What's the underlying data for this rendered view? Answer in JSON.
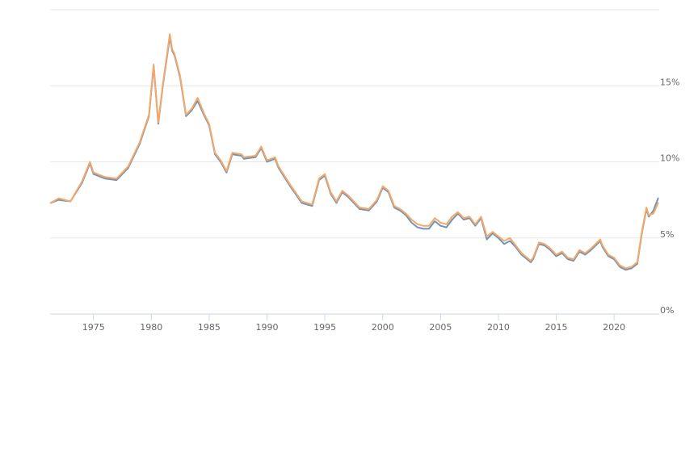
{
  "chart_data": {
    "type": "line",
    "title": "",
    "xlabel": "",
    "ylabel": "",
    "xlim": [
      1971.25,
      2023.9
    ],
    "ylim": [
      0,
      20
    ],
    "x_ticks": [
      1975,
      1980,
      1985,
      1990,
      1995,
      2000,
      2005,
      2010,
      2015,
      2020
    ],
    "y_ticks": [
      0,
      5,
      10,
      15
    ],
    "y_tick_suffix": "%",
    "grid": "horizontal",
    "legend": "none",
    "series": [
      {
        "color": "#6f94b8",
        "x": [
          1971.3,
          1972.0,
          1973.0,
          1974.0,
          1974.7,
          1975.0,
          1976.0,
          1977.0,
          1978.0,
          1979.0,
          1979.8,
          1980.2,
          1980.6,
          1981.0,
          1981.6,
          1981.8,
          1982.0,
          1982.5,
          1983.0,
          1983.5,
          1984.0,
          1984.6,
          1985.0,
          1985.5,
          1986.0,
          1986.5,
          1987.0,
          1987.8,
          1988.0,
          1989.0,
          1989.5,
          1990.0,
          1990.7,
          1991.0,
          1992.0,
          1993.0,
          1993.9,
          1994.5,
          1995.0,
          1995.5,
          1996.0,
          1996.5,
          1997.0,
          1998.0,
          1998.8,
          1999.5,
          2000.0,
          2000.5,
          2001.0,
          2001.5,
          2002.0,
          2002.5,
          2003.0,
          2003.5,
          2004.0,
          2004.5,
          2005.0,
          2005.5,
          2006.0,
          2006.5,
          2007.0,
          2007.5,
          2008.0,
          2008.5,
          2009.0,
          2009.5,
          2010.0,
          2010.5,
          2011.0,
          2011.5,
          2012.0,
          2012.8,
          2013.0,
          2013.5,
          2014.0,
          2014.5,
          2015.0,
          2015.5,
          2016.0,
          2016.5,
          2017.0,
          2017.5,
          2018.0,
          2018.8,
          2019.0,
          2019.5,
          2020.0,
          2020.5,
          2021.0,
          2021.5,
          2022.0,
          2022.4,
          2022.8,
          2023.0,
          2023.4,
          2023.8
        ],
        "y": [
          7.3,
          7.5,
          7.4,
          8.6,
          9.9,
          9.2,
          8.9,
          8.8,
          9.6,
          11.2,
          13.0,
          16.3,
          12.5,
          15.0,
          18.2,
          17.3,
          17.0,
          15.5,
          13.0,
          13.4,
          14.0,
          13.0,
          12.4,
          10.5,
          10.0,
          9.3,
          10.5,
          10.4,
          10.2,
          10.3,
          10.9,
          10.0,
          10.2,
          9.6,
          8.4,
          7.3,
          7.1,
          8.8,
          9.1,
          7.9,
          7.3,
          8.0,
          7.7,
          6.9,
          6.8,
          7.4,
          8.3,
          8.0,
          7.0,
          6.8,
          6.5,
          6.0,
          5.7,
          5.6,
          5.6,
          6.1,
          5.8,
          5.7,
          6.2,
          6.6,
          6.2,
          6.3,
          5.8,
          6.3,
          4.9,
          5.3,
          5.0,
          4.6,
          4.8,
          4.4,
          3.9,
          3.4,
          3.6,
          4.6,
          4.5,
          4.2,
          3.8,
          4.0,
          3.6,
          3.5,
          4.1,
          3.9,
          4.2,
          4.8,
          4.4,
          3.8,
          3.6,
          3.1,
          2.9,
          3.0,
          3.3,
          5.3,
          6.9,
          6.4,
          6.8,
          7.6
        ]
      },
      {
        "color": "#f5a86a",
        "x": [
          1971.3,
          1972.0,
          1973.0,
          1974.0,
          1974.7,
          1975.0,
          1976.0,
          1977.0,
          1978.0,
          1979.0,
          1979.8,
          1980.2,
          1980.6,
          1981.0,
          1981.6,
          1981.8,
          1982.0,
          1982.5,
          1983.0,
          1983.5,
          1984.0,
          1984.6,
          1985.0,
          1985.5,
          1986.0,
          1986.5,
          1987.0,
          1987.8,
          1988.0,
          1989.0,
          1989.5,
          1990.0,
          1990.7,
          1991.0,
          1992.0,
          1993.0,
          1993.9,
          1994.5,
          1995.0,
          1995.5,
          1996.0,
          1996.5,
          1997.0,
          1998.0,
          1998.8,
          1999.5,
          2000.0,
          2000.5,
          2001.0,
          2001.5,
          2002.0,
          2002.5,
          2003.0,
          2003.5,
          2004.0,
          2004.5,
          2005.0,
          2005.5,
          2006.0,
          2006.5,
          2007.0,
          2007.5,
          2008.0,
          2008.5,
          2009.0,
          2009.5,
          2010.0,
          2010.5,
          2011.0,
          2011.5,
          2012.0,
          2012.8,
          2013.0,
          2013.5,
          2014.0,
          2014.5,
          2015.0,
          2015.5,
          2016.0,
          2016.5,
          2017.0,
          2017.5,
          2018.0,
          2018.8,
          2019.0,
          2019.5,
          2020.0,
          2020.5,
          2021.0,
          2021.5,
          2022.0,
          2022.4,
          2022.8,
          2023.0,
          2023.4,
          2023.8
        ],
        "y": [
          7.3,
          7.6,
          7.4,
          8.7,
          10.0,
          9.3,
          9.0,
          8.9,
          9.7,
          11.3,
          13.1,
          16.4,
          12.6,
          15.1,
          18.4,
          17.4,
          17.1,
          15.6,
          13.1,
          13.5,
          14.2,
          13.1,
          12.5,
          10.6,
          10.1,
          9.4,
          10.6,
          10.5,
          10.3,
          10.4,
          11.0,
          10.1,
          10.3,
          9.7,
          8.5,
          7.4,
          7.2,
          8.9,
          9.2,
          8.0,
          7.4,
          8.1,
          7.8,
          7.0,
          6.9,
          7.5,
          8.4,
          8.1,
          7.1,
          6.9,
          6.6,
          6.2,
          5.9,
          5.8,
          5.8,
          6.3,
          6.0,
          5.9,
          6.4,
          6.7,
          6.3,
          6.4,
          5.9,
          6.4,
          5.1,
          5.4,
          5.1,
          4.8,
          5.0,
          4.5,
          4.0,
          3.5,
          3.7,
          4.7,
          4.6,
          4.3,
          3.9,
          4.1,
          3.7,
          3.6,
          4.2,
          4.0,
          4.3,
          4.9,
          4.5,
          3.9,
          3.7,
          3.2,
          3.0,
          3.1,
          3.4,
          5.4,
          7.0,
          6.5,
          6.6,
          7.3
        ]
      }
    ]
  }
}
